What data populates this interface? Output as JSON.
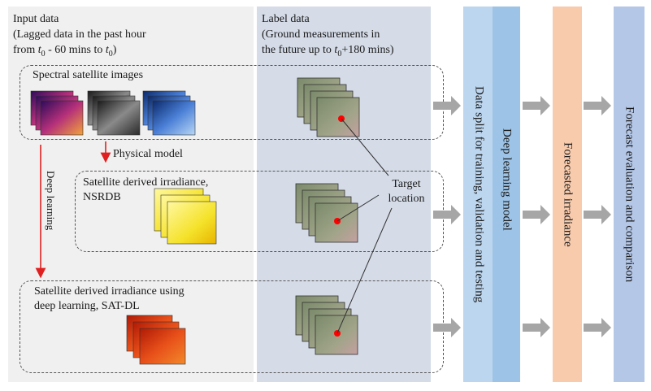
{
  "input_panel": {
    "title": "Input data",
    "line2": "(Lagged data in the past hour",
    "line3_a": "from ",
    "line3_t": "t",
    "line3_sub": "0",
    "line3_b": " - 60 mins to ",
    "line3_t2": "t",
    "line3_sub2": "0",
    "line3_c": ")"
  },
  "label_panel": {
    "title": "Label data",
    "line2": "(Ground measurements in",
    "line3_a": "the future up to ",
    "line3_t": "t",
    "line3_sub": "0",
    "line3_b": "+180 mins)"
  },
  "boxes": {
    "spectral": "Spectral satellite images",
    "nsrdb_line1": "Satellite derived irradiance,",
    "nsrdb_line2": "NSRDB",
    "satdl_line1": "Satellite derived irradiance using",
    "satdl_line2": "deep learning, SAT-DL"
  },
  "arrows": {
    "physical_model": "Physical model",
    "deep_learning": "Deep learning"
  },
  "target": {
    "line1": "Target",
    "line2": "location"
  },
  "columns": {
    "split": "Data split for training, validation and testing",
    "model": "Deep learning model",
    "forecast": "Forecasted irradiance",
    "evaluation": "Forecast evaluation and comparison"
  },
  "colors": {
    "input_bg": "#f0f0f0",
    "label_bg": "#d5dce8",
    "split_col": "#bcd6ef",
    "model_col": "#9dc3e6",
    "forecast_col": "#f8cbad",
    "evaluation_col": "#b4c7e7",
    "red_arrow": "#e02020",
    "gray_arrow": "#a6a6a6",
    "target_dot": "#ff0000"
  }
}
